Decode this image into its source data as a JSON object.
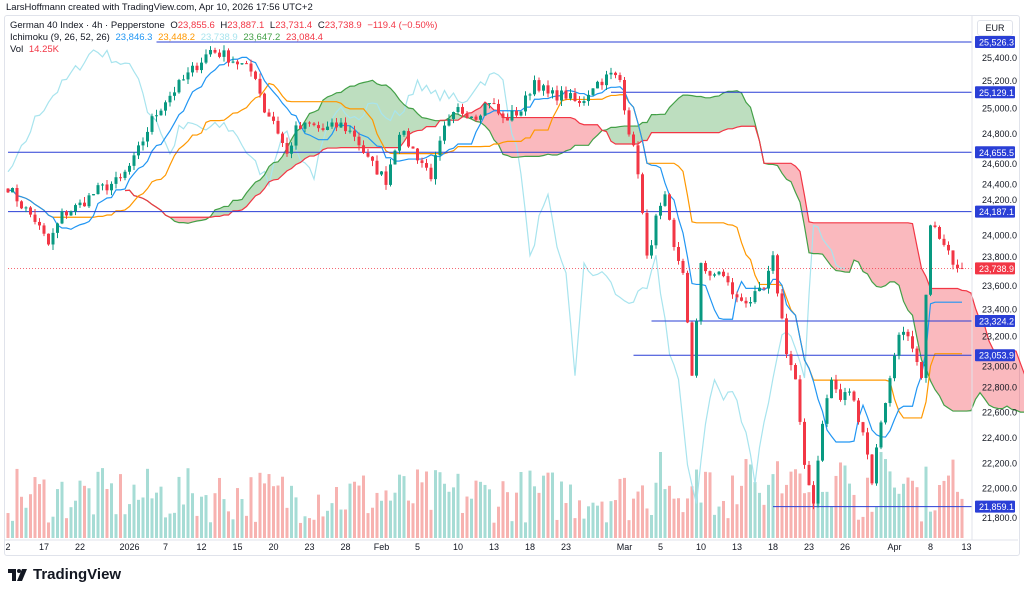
{
  "credit": "LarsHoffmann created with TradingView.com, Apr 10, 2026 17:56 UTC+2",
  "legend": {
    "symbol": "German 40 Index · 4h · Pepperstone",
    "open_label": "O",
    "open": "23,855.6",
    "high_label": "H",
    "high": "23,887.1",
    "low_label": "L",
    "low": "23,731.4",
    "close_label": "C",
    "close": "23,738.9",
    "change": "−119.4 (−0.50%)",
    "ichimoku_label": "Ichimoku (9, 26, 52, 26)",
    "ichimoku_values": [
      "23,846.3",
      "23,448.2",
      "23,738.9",
      "23,647.2",
      "23,084.4"
    ],
    "vol_label": "Vol",
    "vol_value": "14.25K"
  },
  "currency": "EUR",
  "brand": "TradingView",
  "colors": {
    "up": "#089981",
    "down": "#f23645",
    "tenkan": "#2196f3",
    "kijun": "#ff9800",
    "lagging": "#a8e4ee",
    "spanA": "#43a047",
    "spanB": "#f23645",
    "level": "#2a3fd6"
  },
  "chart_data": {
    "type": "candlestick",
    "title": "German 40 Index · 4h · Pepperstone",
    "ylim": [
      21700,
      25650
    ],
    "y_ticks": [
      "25,400.0",
      "25,200.0",
      "25,000.0",
      "24,800.0",
      "24,600.0",
      "24,400.0",
      "24,200.0",
      "24,000.0",
      "23,800.0",
      "23,600.0",
      "23,400.0",
      "23,200.0",
      "23,000.0",
      "22,800.0",
      "22,600.0",
      "22,400.0",
      "22,200.0",
      "22,000.0",
      "21,800.0"
    ],
    "y_tick_values": [
      25400,
      25200,
      25000,
      24800,
      24600,
      24400,
      24200,
      24000,
      23800,
      23600,
      23400,
      23200,
      23000,
      22800,
      22600,
      22400,
      22200,
      22000,
      21800
    ],
    "x_ticks": [
      {
        "bar": 0,
        "label": "2"
      },
      {
        "bar": 8,
        "label": "17"
      },
      {
        "bar": 16,
        "label": "22"
      },
      {
        "bar": 27,
        "label": "2026"
      },
      {
        "bar": 35,
        "label": "7"
      },
      {
        "bar": 43,
        "label": "12"
      },
      {
        "bar": 51,
        "label": "15"
      },
      {
        "bar": 59,
        "label": "20"
      },
      {
        "bar": 67,
        "label": "23"
      },
      {
        "bar": 75,
        "label": "28"
      },
      {
        "bar": 83,
        "label": "Feb"
      },
      {
        "bar": 91,
        "label": "5"
      },
      {
        "bar": 100,
        "label": "10"
      },
      {
        "bar": 108,
        "label": "13"
      },
      {
        "bar": 116,
        "label": "18"
      },
      {
        "bar": 124,
        "label": "23"
      },
      {
        "bar": 137,
        "label": "Mar"
      },
      {
        "bar": 145,
        "label": "5"
      },
      {
        "bar": 154,
        "label": "10"
      },
      {
        "bar": 162,
        "label": "13"
      },
      {
        "bar": 170,
        "label": "18"
      },
      {
        "bar": 178,
        "label": "23"
      },
      {
        "bar": 186,
        "label": "26"
      },
      {
        "bar": 197,
        "label": "Apr"
      },
      {
        "bar": 205,
        "label": "8"
      },
      {
        "bar": 213,
        "label": "13"
      }
    ],
    "close_keypoints": [
      [
        0,
        24384
      ],
      [
        3,
        24239
      ],
      [
        6,
        24121
      ],
      [
        9,
        23924
      ],
      [
        12,
        24160
      ],
      [
        16,
        24240
      ],
      [
        20,
        24358
      ],
      [
        25,
        24436
      ],
      [
        28,
        24594
      ],
      [
        32,
        24910
      ],
      [
        35,
        25068
      ],
      [
        38,
        25186
      ],
      [
        42,
        25344
      ],
      [
        45,
        25462
      ],
      [
        48,
        25423
      ],
      [
        52,
        25344
      ],
      [
        55,
        25265
      ],
      [
        57,
        24989
      ],
      [
        59,
        24910
      ],
      [
        62,
        24634
      ],
      [
        64,
        24831
      ],
      [
        67,
        24871
      ],
      [
        70,
        24831
      ],
      [
        74,
        24871
      ],
      [
        77,
        24792
      ],
      [
        80,
        24594
      ],
      [
        84,
        24436
      ],
      [
        87,
        24831
      ],
      [
        90,
        24673
      ],
      [
        94,
        24476
      ],
      [
        97,
        24831
      ],
      [
        100,
        24989
      ],
      [
        104,
        24950
      ],
      [
        107,
        25068
      ],
      [
        110,
        24910
      ],
      [
        114,
        24989
      ],
      [
        117,
        25226
      ],
      [
        120,
        25107
      ],
      [
        124,
        25107
      ],
      [
        127,
        25028
      ],
      [
        130,
        25186
      ],
      [
        134,
        25265
      ],
      [
        136,
        25226
      ],
      [
        138,
        24831
      ],
      [
        140,
        24515
      ],
      [
        142,
        23805
      ],
      [
        144,
        24121
      ],
      [
        146,
        24279
      ],
      [
        148,
        23884
      ],
      [
        150,
        23726
      ],
      [
        152,
        22858
      ],
      [
        154,
        23805
      ],
      [
        156,
        23647
      ],
      [
        158,
        23726
      ],
      [
        162,
        23490
      ],
      [
        165,
        23490
      ],
      [
        168,
        23568
      ],
      [
        170,
        23805
      ],
      [
        173,
        23095
      ],
      [
        175,
        22858
      ],
      [
        177,
        22148
      ],
      [
        179,
        21911
      ],
      [
        181,
        22542
      ],
      [
        183,
        22858
      ],
      [
        185,
        22700
      ],
      [
        187,
        22779
      ],
      [
        190,
        22463
      ],
      [
        192,
        22069
      ],
      [
        194,
        22542
      ],
      [
        196,
        22858
      ],
      [
        198,
        23253
      ],
      [
        200,
        23174
      ],
      [
        203,
        22858
      ],
      [
        205,
        24121
      ],
      [
        207,
        23963
      ],
      [
        209,
        23845
      ],
      [
        212,
        23739
      ]
    ],
    "last_price": 23738.9,
    "last_price_label": "23,738.9",
    "levels": [
      {
        "value": 25526.3,
        "label": "25,526.3",
        "from_bar": 33
      },
      {
        "value": 25129.1,
        "label": "25,129.1",
        "from_bar": 134
      },
      {
        "value": 24655.5,
        "label": "24,655.5",
        "from_bar": 0
      },
      {
        "value": 24187.1,
        "label": "24,187.1",
        "from_bar": 0
      },
      {
        "value": 23324.2,
        "label": "23,324.2",
        "from_bar": 143
      },
      {
        "value": 23053.9,
        "label": "23,053.9",
        "from_bar": 139
      },
      {
        "value": 21859.1,
        "label": "21,859.1",
        "from_bar": 170
      }
    ],
    "ichimoku": {
      "tenkan": 9,
      "kijun": 26,
      "spanB": 52,
      "displacement": 26
    }
  }
}
